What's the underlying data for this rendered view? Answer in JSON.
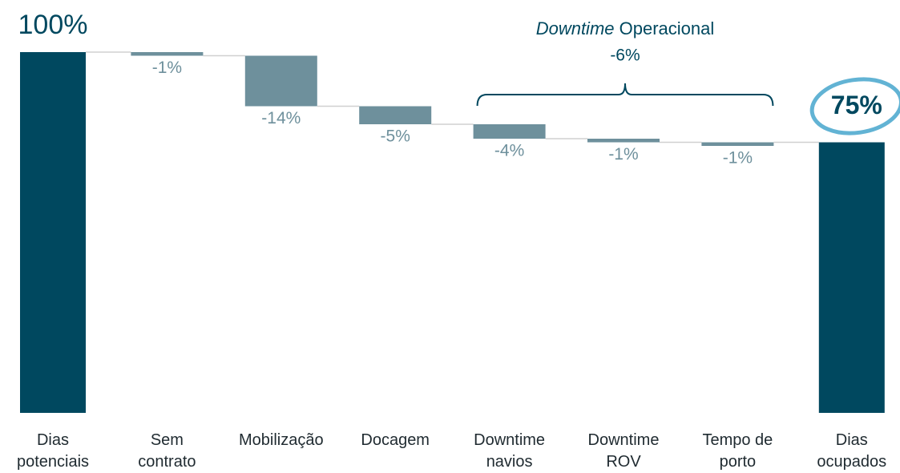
{
  "chart_data": {
    "type": "waterfall",
    "categories": [
      "Dias potenciais",
      "Sem contrato",
      "Mobilização",
      "Docagem",
      "Downtime navios",
      "Downtime ROV",
      "Tempo de porto",
      "Dias ocupados"
    ],
    "values": [
      100,
      -1,
      -14,
      -5,
      -4,
      -1,
      -1,
      75
    ],
    "value_labels": [
      "100%",
      "-1%",
      "-14%",
      "-5%",
      "-4%",
      "-1%",
      "-1%",
      "75%"
    ],
    "measures": [
      "total",
      "relative",
      "relative",
      "relative",
      "relative",
      "relative",
      "relative",
      "total"
    ],
    "total_color": "#00485f",
    "delta_color": "#6e909c",
    "ylim": [
      0,
      100
    ],
    "annotation": {
      "emphasis": "Downtime",
      "text": "Operacional",
      "value": -6,
      "value_label": "-6%",
      "from": 4,
      "to": 6
    }
  }
}
